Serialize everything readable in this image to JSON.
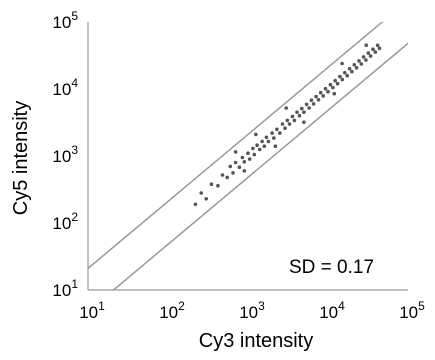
{
  "chart_data": {
    "type": "scatter",
    "title": "",
    "xlabel": "Cy3 intensity",
    "ylabel": "Cy5 intensity",
    "xscale": "log",
    "yscale": "log",
    "xlim": [
      10,
      100000
    ],
    "ylim": [
      10,
      100000
    ],
    "grid": false,
    "x_ticks": [
      {
        "base": "10",
        "exp": "1"
      },
      {
        "base": "10",
        "exp": "2"
      },
      {
        "base": "10",
        "exp": "3"
      },
      {
        "base": "10",
        "exp": "4"
      },
      {
        "base": "10",
        "exp": "5"
      }
    ],
    "y_ticks": [
      {
        "base": "10",
        "exp": "1"
      },
      {
        "base": "10",
        "exp": "2"
      },
      {
        "base": "10",
        "exp": "3"
      },
      {
        "base": "10",
        "exp": "4"
      },
      {
        "base": "10",
        "exp": "5"
      }
    ],
    "annotation": "SD = 0.17",
    "colors": {
      "points": "#555555",
      "guide_lines": "#999999",
      "axes": "#999999"
    },
    "reference_lines": [
      {
        "x": [
          10,
          100000
        ],
        "y": [
          21,
          210000
        ]
      },
      {
        "x": [
          10,
          100000
        ],
        "y": [
          4.8,
          48000
        ]
      }
    ],
    "series": [
      {
        "x_range": [
          200,
          45000
        ],
        "relation": "y ≈ x",
        "points": [
          [
            220,
            190
          ],
          [
            260,
            280
          ],
          [
            300,
            230
          ],
          [
            350,
            380
          ],
          [
            420,
            360
          ],
          [
            480,
            520
          ],
          [
            550,
            480
          ],
          [
            600,
            700
          ],
          [
            650,
            560
          ],
          [
            700,
            800
          ],
          [
            780,
            680
          ],
          [
            850,
            950
          ],
          [
            900,
            820
          ],
          [
            1000,
            1100
          ],
          [
            1050,
            900
          ],
          [
            1150,
            1300
          ],
          [
            1200,
            1050
          ],
          [
            1300,
            1450
          ],
          [
            1400,
            1250
          ],
          [
            1500,
            1650
          ],
          [
            1600,
            1400
          ],
          [
            1700,
            1900
          ],
          [
            1800,
            1650
          ],
          [
            2000,
            2200
          ],
          [
            2100,
            1850
          ],
          [
            2300,
            2500
          ],
          [
            2500,
            2200
          ],
          [
            2700,
            3000
          ],
          [
            2900,
            2600
          ],
          [
            3100,
            3400
          ],
          [
            3300,
            3000
          ],
          [
            3600,
            3900
          ],
          [
            3800,
            3400
          ],
          [
            4100,
            4500
          ],
          [
            4400,
            4000
          ],
          [
            4700,
            5100
          ],
          [
            5000,
            4500
          ],
          [
            5400,
            5900
          ],
          [
            5800,
            5200
          ],
          [
            6200,
            6800
          ],
          [
            6600,
            6000
          ],
          [
            7100,
            7700
          ],
          [
            7600,
            6900
          ],
          [
            8100,
            8800
          ],
          [
            8700,
            7900
          ],
          [
            9300,
            10100
          ],
          [
            10000,
            9100
          ],
          [
            10700,
            11600
          ],
          [
            11500,
            10500
          ],
          [
            12300,
            13300
          ],
          [
            13200,
            12000
          ],
          [
            14100,
            15300
          ],
          [
            15100,
            13800
          ],
          [
            16200,
            17500
          ],
          [
            17400,
            15800
          ],
          [
            18600,
            20100
          ],
          [
            19900,
            18100
          ],
          [
            21300,
            23000
          ],
          [
            22800,
            20700
          ],
          [
            24400,
            26300
          ],
          [
            26100,
            23700
          ],
          [
            27900,
            30100
          ],
          [
            29800,
            27100
          ],
          [
            31900,
            34400
          ],
          [
            34100,
            31000
          ],
          [
            36500,
            39300
          ],
          [
            39000,
            35500
          ],
          [
            41700,
            44900
          ],
          [
            44000,
            40500
          ],
          [
            1250,
            2100
          ],
          [
            900,
            600
          ],
          [
            3000,
            5200
          ],
          [
            5000,
            3200
          ],
          [
            15000,
            24000
          ],
          [
            12000,
            8500
          ],
          [
            2200,
            1400
          ],
          [
            700,
            1150
          ],
          [
            30000,
            45000
          ]
        ]
      }
    ]
  }
}
